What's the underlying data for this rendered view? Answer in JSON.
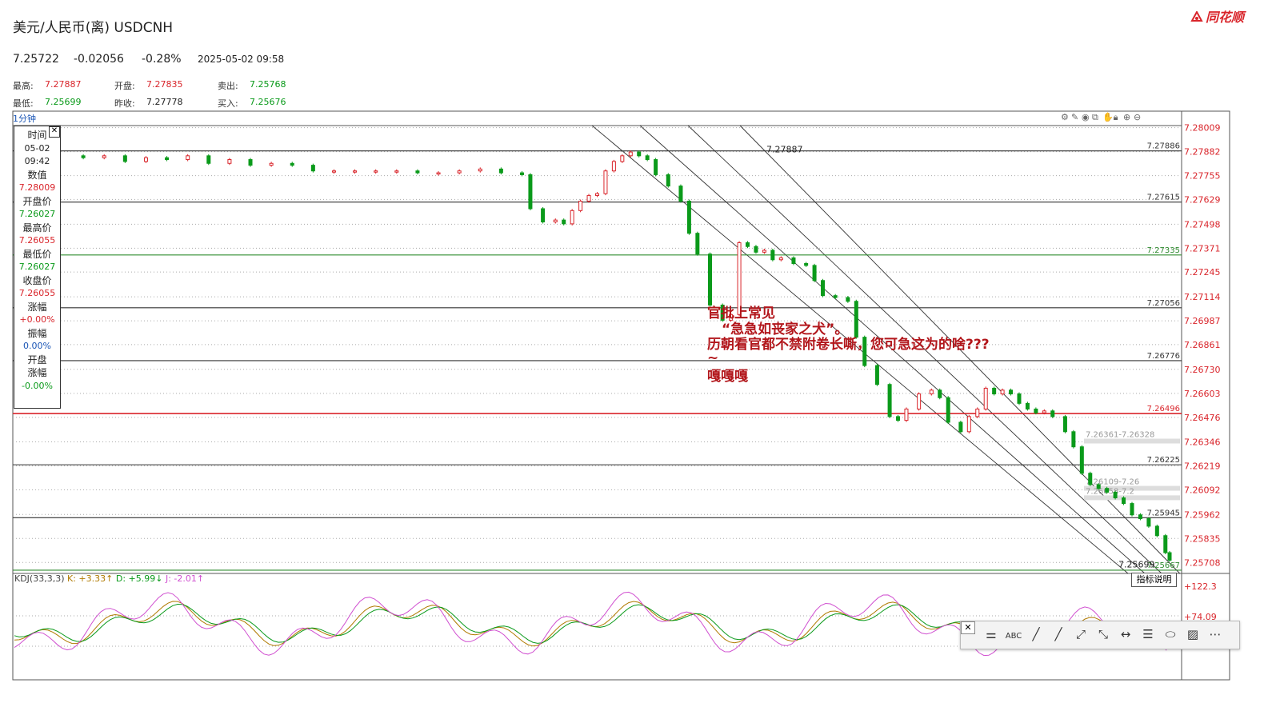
{
  "header": {
    "title": "美元/人民币(离) USDCNH",
    "logo": "同花顺",
    "price": "7.25722",
    "change": "-0.02056",
    "change_pct": "-0.28%",
    "datetime": "2025-05-02 09:58"
  },
  "stats": [
    {
      "label": "最高:",
      "value": "7.27887",
      "color": "#d9252b"
    },
    {
      "label": "开盘:",
      "value": "7.27835",
      "color": "#d9252b"
    },
    {
      "label": "卖出:",
      "value": "7.25768",
      "color": "#0a9a1a"
    },
    {
      "label": "最低:",
      "value": "7.25699",
      "color": "#0a9a1a"
    },
    {
      "label": "昨收:",
      "value": "7.27778",
      "color": "#222222"
    },
    {
      "label": "买入:",
      "value": "7.25676",
      "color": "#0a9a1a"
    }
  ],
  "timeframe": "1分钟",
  "toolbar_icons": [
    "settings-icon",
    "pen-icon",
    "eye-icon",
    "clone-icon",
    "hand-icon",
    "lock-icon",
    "plus-icon",
    "minus-icon"
  ],
  "infobox": {
    "rows": [
      {
        "k": "时间",
        "v": "05-02"
      },
      {
        "k": "",
        "v": "09:42"
      },
      {
        "k": "数值",
        "v": "7.28009",
        "color": "#d9252b"
      },
      {
        "k": "开盘价",
        "v": "7.26027",
        "color": "#0a9a1a"
      },
      {
        "k": "最高价",
        "v": "7.26055",
        "color": "#d9252b"
      },
      {
        "k": "最低价",
        "v": "7.26027",
        "color": "#0a9a1a"
      },
      {
        "k": "收盘价",
        "v": "7.26055",
        "color": "#d9252b"
      },
      {
        "k": "涨幅",
        "v": "+0.00%",
        "color": "#d9252b"
      },
      {
        "k": "振幅",
        "v": "0.00%",
        "color": "#1a55b5"
      },
      {
        "k": "开盘",
        "v": ""
      },
      {
        "k": "涨幅",
        "v": "-0.00%",
        "color": "#0a9a1a"
      }
    ]
  },
  "annotation": {
    "lines": [
      "官批上常见",
      "“急急如丧家之犬”。",
      "历朝看官都不禁附卷长嘶，您可急这为的啥???",
      "~",
      "嘎嘎嘎"
    ]
  },
  "chart_data": {
    "type": "candlestick",
    "interval": "1分钟",
    "y_axis": {
      "ticks": [
        "7.28009",
        "7.27882",
        "7.27755",
        "7.27629",
        "7.27498",
        "7.27371",
        "7.27245",
        "7.27114",
        "7.26987",
        "7.26861",
        "7.26730",
        "7.26603",
        "7.26476",
        "7.26346",
        "7.26219",
        "7.26092",
        "7.25962",
        "7.25835",
        "7.25708"
      ],
      "range": [
        7.2565,
        7.2802
      ]
    },
    "high_label": "7.27887",
    "low_label": "7.25699",
    "levels": [
      {
        "value": 7.27886,
        "label": "7.27886",
        "color": "#333333"
      },
      {
        "value": 7.27615,
        "label": "7.27615",
        "color": "#333333"
      },
      {
        "value": 7.27335,
        "label": "7.27335",
        "color": "#2e8b2e"
      },
      {
        "value": 7.27056,
        "label": "7.27056",
        "color": "#333333"
      },
      {
        "value": 7.26776,
        "label": "7.26776",
        "color": "#333333"
      },
      {
        "value": 7.26496,
        "label": "7.26496",
        "color": "#d9252b"
      },
      {
        "value": 7.26225,
        "label": "7.26225",
        "color": "#333333"
      },
      {
        "value": 7.25945,
        "label": "7.25945",
        "color": "#333333"
      },
      {
        "value": 7.25667,
        "label": "7.25667",
        "color": "#2e8b2e"
      }
    ],
    "zone_labels": [
      "7.26361-7.26328",
      "7.26109-7.26",
      "7.26058-7.2"
    ],
    "price_path": [
      [
        0,
        7.2786
      ],
      [
        5,
        7.2785
      ],
      [
        10,
        7.2786
      ],
      [
        15,
        7.2783
      ],
      [
        20,
        7.2785
      ],
      [
        25,
        7.2784
      ],
      [
        30,
        7.2786
      ],
      [
        35,
        7.2782
      ],
      [
        40,
        7.2784
      ],
      [
        45,
        7.2781
      ],
      [
        50,
        7.2782
      ],
      [
        55,
        7.2781
      ],
      [
        60,
        7.2778
      ],
      [
        65,
        7.2778
      ],
      [
        70,
        7.2778
      ],
      [
        75,
        7.2778
      ],
      [
        80,
        7.2778
      ],
      [
        85,
        7.2777
      ],
      [
        90,
        7.2777
      ],
      [
        95,
        7.2778
      ],
      [
        100,
        7.2779
      ],
      [
        105,
        7.2777
      ],
      [
        110,
        7.2776
      ],
      [
        112,
        7.2758
      ],
      [
        115,
        7.2751
      ],
      [
        118,
        7.2752
      ],
      [
        120,
        7.275
      ],
      [
        122,
        7.2757
      ],
      [
        124,
        7.2762
      ],
      [
        126,
        7.2765
      ],
      [
        128,
        7.2766
      ],
      [
        130,
        7.2778
      ],
      [
        132,
        7.2783
      ],
      [
        134,
        7.2786
      ],
      [
        136,
        7.2788
      ],
      [
        138,
        7.2786
      ],
      [
        140,
        7.2784
      ],
      [
        142,
        7.2776
      ],
      [
        145,
        7.277
      ],
      [
        148,
        7.2762
      ],
      [
        150,
        7.2745
      ],
      [
        152,
        7.2734
      ],
      [
        155,
        7.2707
      ],
      [
        158,
        7.2699
      ],
      [
        160,
        7.2702
      ],
      [
        162,
        7.274
      ],
      [
        164,
        7.2738
      ],
      [
        166,
        7.2735
      ],
      [
        168,
        7.2736
      ],
      [
        170,
        7.2731
      ],
      [
        172,
        7.2732
      ],
      [
        175,
        7.2729
      ],
      [
        178,
        7.2728
      ],
      [
        180,
        7.272
      ],
      [
        182,
        7.2712
      ],
      [
        185,
        7.2711
      ],
      [
        188,
        7.2709
      ],
      [
        190,
        7.269
      ],
      [
        192,
        7.2675
      ],
      [
        195,
        7.2665
      ],
      [
        198,
        7.2648
      ],
      [
        200,
        7.2646
      ],
      [
        202,
        7.2652
      ],
      [
        205,
        7.266
      ],
      [
        208,
        7.2662
      ],
      [
        210,
        7.2658
      ],
      [
        212,
        7.2645
      ],
      [
        215,
        7.264
      ],
      [
        217,
        7.2648
      ],
      [
        219,
        7.2652
      ],
      [
        221,
        7.2663
      ],
      [
        223,
        7.266
      ],
      [
        225,
        7.2662
      ],
      [
        227,
        7.266
      ],
      [
        229,
        7.2655
      ],
      [
        231,
        7.2652
      ],
      [
        233,
        7.265
      ],
      [
        235,
        7.2651
      ],
      [
        237,
        7.2648
      ],
      [
        240,
        7.264
      ],
      [
        242,
        7.2632
      ],
      [
        244,
        7.2618
      ],
      [
        246,
        7.2612
      ],
      [
        248,
        7.261
      ],
      [
        250,
        7.2608
      ],
      [
        252,
        7.2605
      ],
      [
        254,
        7.2602
      ],
      [
        256,
        7.2596
      ],
      [
        258,
        7.2594
      ],
      [
        260,
        7.259
      ],
      [
        262,
        7.2585
      ],
      [
        264,
        7.2576
      ],
      [
        265,
        7.2572
      ]
    ],
    "channels": [
      {
        "x1": 0.0,
        "y1": 7.2802,
        "x2": 1.0,
        "y2": 7.2548
      },
      {
        "x1": 0.0,
        "y1": 7.2802,
        "x2": 1.0,
        "y2": 7.2555
      },
      {
        "x1": 0.0,
        "y1": 7.2802,
        "x2": 1.0,
        "y2": 7.2563
      },
      {
        "x1": 0.0,
        "y1": 7.2802,
        "x2": 1.0,
        "y2": 7.2571
      }
    ],
    "kdj": {
      "label": "KDJ(33,3,3)",
      "K_label": "K: +3.33↑",
      "D_label": "D: +5.99↓",
      "J_label": "J: -2.01↑",
      "axis_ticks": [
        "+122.3",
        "+74.09"
      ]
    }
  },
  "indicator_button": "指标说明",
  "drawing_toolbar": {
    "close": "✕",
    "tools": [
      "⚌",
      "ABC",
      "╱",
      "╱",
      "⤢",
      "⤡",
      "↔",
      "☰",
      "⬭",
      "▨",
      "⋯"
    ]
  }
}
